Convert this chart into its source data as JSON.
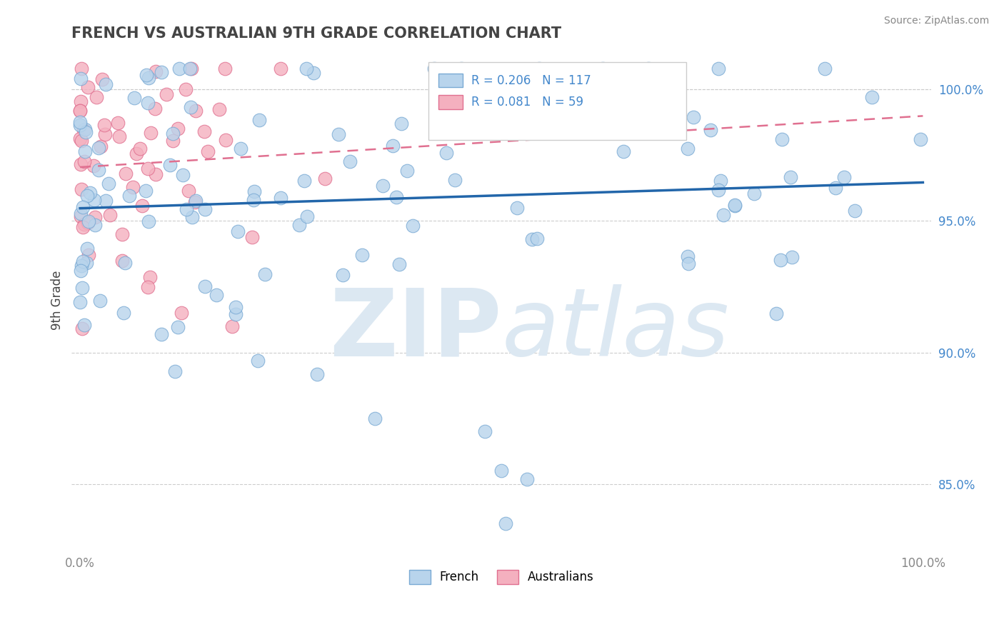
{
  "title": "FRENCH VS AUSTRALIAN 9TH GRADE CORRELATION CHART",
  "source": "Source: ZipAtlas.com",
  "ylabel": "9th Grade",
  "french_R": 0.206,
  "french_N": 117,
  "australian_R": 0.081,
  "australian_N": 59,
  "french_color": "#b8d4ec",
  "french_edge_color": "#7aaad4",
  "australian_color": "#f4b0bf",
  "australian_edge_color": "#e07090",
  "french_line_color": "#2266aa",
  "australian_line_color": "#e07090",
  "legend_label_french": "French",
  "legend_label_australian": "Australians",
  "watermark_color": "#dce8f2",
  "grid_color": "#cccccc",
  "ytick_color": "#4488cc",
  "xtick_color": "#888888",
  "title_color": "#444444",
  "ylabel_color": "#444444",
  "source_color": "#888888",
  "ylim_min": 82.5,
  "ylim_max": 101.5,
  "xlim_min": -1.0,
  "xlim_max": 101.0,
  "yticks": [
    85.0,
    90.0,
    95.0,
    100.0
  ],
  "ytick_labels": [
    "85.0%",
    "90.0%",
    "95.0%",
    "100.0%"
  ],
  "french_seed": 7,
  "australian_seed": 13,
  "marker_size": 180
}
